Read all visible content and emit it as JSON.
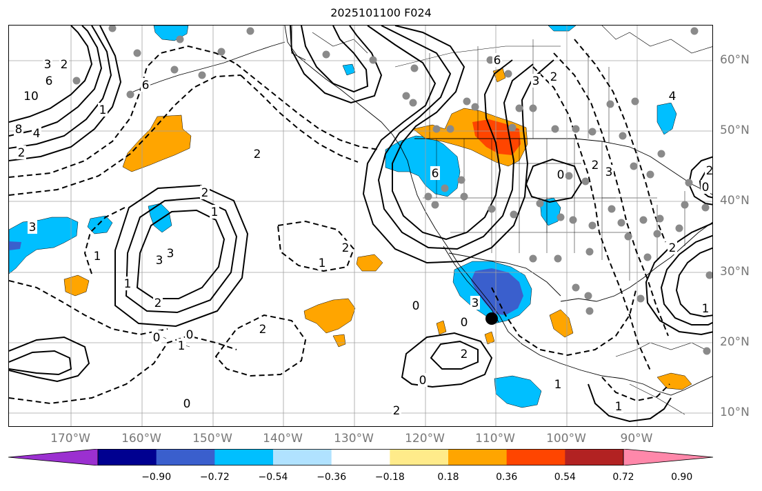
{
  "title": "2025101100 F024",
  "longitude_labels": [
    "170°W",
    "160°W",
    "150°W",
    "140°W",
    "130°W",
    "120°W",
    "110°W",
    "100°W",
    "90°W"
  ],
  "latitude_labels": [
    "60°N",
    "50°N",
    "40°N",
    "30°N",
    "20°N",
    "10°N"
  ],
  "colorbar": {
    "tick_labels": [
      "−0.90",
      "−0.72",
      "−0.54",
      "−0.36",
      "−0.18",
      "0.18",
      "0.36",
      "0.54",
      "0.72",
      "0.90"
    ],
    "colors": [
      "#9b30d0",
      "#000090",
      "#3a5fcd",
      "#00bfff",
      "#b0e2ff",
      "#ffffff",
      "#ffeb8a",
      "#ffa500",
      "#ff4500",
      "#b22222",
      "#ff88aa"
    ]
  },
  "contour_labels": [
    "3",
    "2",
    "6",
    "10",
    "8",
    "4",
    "6",
    "2",
    "1",
    "3",
    "2",
    "3",
    "1",
    "3",
    "2",
    "1",
    "2",
    "0",
    "0",
    "1",
    "2",
    "1",
    "0",
    "2",
    "0",
    "3",
    "2",
    "1",
    "0",
    "6",
    "3",
    "2",
    "0",
    "6",
    "2",
    "1",
    "2",
    "0",
    "2",
    "0",
    "1",
    "1",
    "4",
    "3",
    "2"
  ],
  "marker_colors": {
    "station": "#8a8a8a",
    "center": "#000000",
    "grid": "#a0a0a0"
  }
}
